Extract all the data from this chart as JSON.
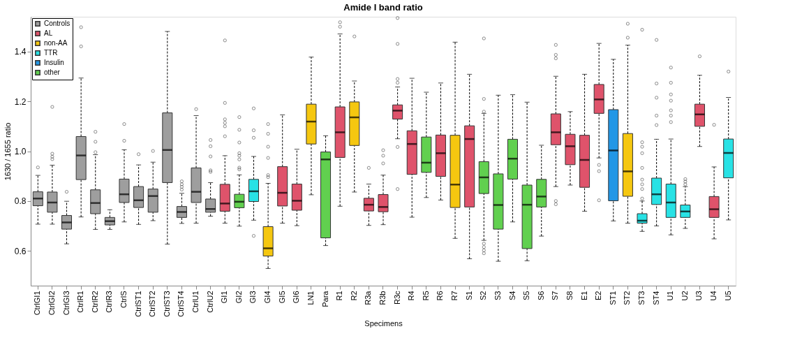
{
  "chart_data": {
    "type": "box",
    "title": "Amide I band ratio",
    "xlabel": "Specimens",
    "ylabel": "1630 / 1655 ratio",
    "categories": [
      "CtrlGI1",
      "CtrlGI2",
      "CtrlGI3",
      "CtrlR1",
      "CtrlR2",
      "CtrlR3",
      "CtrlS",
      "CtrlST1",
      "CtrlST2",
      "CtrlST3",
      "CtrlST4",
      "CtrlU1",
      "CtrlU2",
      "GI1",
      "GI2",
      "GI3",
      "GI4",
      "GI5",
      "GI6",
      "LN1",
      "Para",
      "R1",
      "R2",
      "R3a",
      "R3b",
      "R3c",
      "R4",
      "R5",
      "R6",
      "R7",
      "S1",
      "S2",
      "S3",
      "S4",
      "S5",
      "S6",
      "S7",
      "S8",
      "E1",
      "E2",
      "ST1",
      "ST2",
      "ST3",
      "ST4",
      "U1",
      "U2",
      "U3",
      "U4",
      "U5"
    ],
    "ylim": [
      0.46,
      1.54
    ],
    "yticks": [
      0.6,
      0.8,
      {
        "value": 1.0,
        "label": "1.0"
      },
      1.2,
      1.4
    ],
    "legend": "top left",
    "series": [
      {
        "name": "Controls",
        "color": "#9e9e9e",
        "boxes": [
          {
            "low": 0.707,
            "q1": 0.781,
            "median": 0.81,
            "q3": 0.837,
            "high": 0.903,
            "outliers": [
              0.935
            ]
          },
          {
            "low": 0.707,
            "q1": 0.755,
            "median": 0.794,
            "q3": 0.836,
            "high": 0.944,
            "outliers": [
              1.178,
              0.99,
              0.978,
              0.968
            ]
          },
          {
            "low": 0.628,
            "q1": 0.687,
            "median": 0.714,
            "q3": 0.742,
            "high": 0.799,
            "outliers": [
              0.837
            ]
          },
          {
            "low": 0.736,
            "q1": 0.886,
            "median": 0.983,
            "q3": 1.059,
            "high": 1.294,
            "outliers": [
              1.498,
              1.421
            ]
          },
          {
            "low": 0.686,
            "q1": 0.749,
            "median": 0.792,
            "q3": 0.845,
            "high": 0.986,
            "outliers": [
              1.078,
              1.038,
              0.996
            ]
          },
          {
            "low": 0.686,
            "q1": 0.704,
            "median": 0.719,
            "q3": 0.734,
            "high": 0.765
          },
          {
            "low": 0.716,
            "q1": 0.794,
            "median": 0.827,
            "q3": 0.888,
            "high": 1.006,
            "outliers": [
              1.109,
              1.042
            ]
          },
          {
            "low": 0.706,
            "q1": 0.774,
            "median": 0.803,
            "q3": 0.858,
            "high": 0.945,
            "outliers": [
              0.988
            ]
          },
          {
            "low": 0.721,
            "q1": 0.755,
            "median": 0.82,
            "q3": 0.848,
            "high": 0.956,
            "outliers": [
              1.001
            ]
          },
          {
            "low": 0.627,
            "q1": 0.874,
            "median": 1.005,
            "q3": 1.154,
            "high": 1.481
          },
          {
            "low": 0.71,
            "q1": 0.734,
            "median": 0.756,
            "q3": 0.778,
            "high": 0.831,
            "outliers": [
              0.879,
              0.867,
              0.857,
              0.846
            ]
          },
          {
            "low": 0.711,
            "q1": 0.794,
            "median": 0.837,
            "q3": 0.933,
            "high": 1.143,
            "outliers": [
              1.169
            ]
          },
          {
            "low": 0.739,
            "q1": 0.755,
            "median": 0.768,
            "q3": 0.808,
            "high": 0.874,
            "outliers": [
              1.045,
              1.02,
              0.979,
              0.923,
              0.917
            ]
          },
          null,
          null,
          null,
          null,
          null,
          null,
          null,
          null,
          null,
          null,
          null,
          null,
          null,
          null,
          null,
          null,
          null,
          null,
          null,
          null,
          null,
          null,
          null,
          null,
          null,
          null,
          null,
          null,
          null,
          null,
          null,
          null,
          null,
          null,
          null,
          null
        ]
      },
      {
        "name": "AL",
        "color": "#df536b",
        "boxes": [
          null,
          null,
          null,
          null,
          null,
          null,
          null,
          null,
          null,
          null,
          null,
          null,
          null,
          {
            "low": 0.711,
            "q1": 0.759,
            "median": 0.79,
            "q3": 0.867,
            "high": 0.982,
            "outliers": [
              1.445,
              1.194,
              1.128,
              1.114,
              1.1,
              1.06
            ]
          },
          null,
          null,
          null,
          {
            "low": 0.711,
            "q1": 0.78,
            "median": 0.833,
            "q3": 0.938,
            "high": 1.146
          },
          {
            "low": 0.701,
            "q1": 0.763,
            "median": 0.801,
            "q3": 0.868,
            "high": 1.008
          },
          null,
          null,
          {
            "low": 0.779,
            "q1": 0.975,
            "median": 1.076,
            "q3": 1.178,
            "high": 1.471,
            "outliers": [
              1.518,
              1.5
            ]
          },
          null,
          {
            "low": 0.702,
            "q1": 0.76,
            "median": 0.785,
            "q3": 0.811,
            "high": 0.868,
            "outliers": [
              0.933
            ]
          },
          {
            "low": 0.705,
            "q1": 0.757,
            "median": 0.776,
            "q3": 0.826,
            "high": 0.904,
            "outliers": [
              0.951,
              0.982,
              1.004
            ]
          },
          {
            "low": 1.05,
            "q1": 1.129,
            "median": 1.163,
            "q3": 1.186,
            "high": 1.258,
            "outliers": [
              1.535,
              1.431,
              1.29,
              1.275,
              1.017,
              0.848
            ]
          },
          {
            "low": 0.735,
            "q1": 0.907,
            "median": 1.029,
            "q3": 1.082,
            "high": 1.293
          },
          null,
          {
            "low": 0.804,
            "q1": 0.899,
            "median": 0.992,
            "q3": 1.065,
            "high": 1.274
          },
          null,
          {
            "low": 0.568,
            "q1": 0.776,
            "median": 1.049,
            "q3": 1.102,
            "high": 1.309
          },
          null,
          null,
          null,
          null,
          null,
          {
            "low": 0.858,
            "q1": 1.026,
            "median": 1.076,
            "q3": 1.15,
            "high": 1.301,
            "outliers": [
              1.427,
              1.387,
              1.373,
              0.8,
              0.787
            ]
          },
          {
            "low": 0.864,
            "q1": 0.946,
            "median": 1.02,
            "q3": 1.068,
            "high": 1.159
          },
          {
            "low": 0.759,
            "q1": 0.855,
            "median": 0.965,
            "q3": 1.064,
            "high": 1.309
          },
          {
            "low": 0.973,
            "q1": 1.152,
            "median": 1.208,
            "q3": 1.268,
            "high": 1.433,
            "outliers": [
              0.945,
              0.92,
              0.803
            ]
          },
          null,
          null,
          null,
          null,
          null,
          null,
          {
            "low": 1.019,
            "q1": 1.1,
            "median": 1.148,
            "q3": 1.189,
            "high": 1.305,
            "outliers": [
              1.381
            ]
          },
          {
            "low": 0.648,
            "q1": 0.734,
            "median": 0.767,
            "q3": 0.818,
            "high": 0.937,
            "outliers": [
              1.106
            ]
          },
          null
        ]
      },
      {
        "name": "non-AA",
        "color": "#f5c710",
        "boxes": [
          null,
          null,
          null,
          null,
          null,
          null,
          null,
          null,
          null,
          null,
          null,
          null,
          null,
          null,
          null,
          null,
          {
            "low": 0.529,
            "q1": 0.579,
            "median": 0.61,
            "q3": 0.697,
            "high": 0.871,
            "outliers": [
              1.109,
              1.07,
              1.018,
              0.973,
              0.904,
              0.896
            ]
          },
          null,
          null,
          {
            "low": 0.825,
            "q1": 1.029,
            "median": 1.119,
            "q3": 1.189,
            "high": 1.378
          },
          null,
          null,
          {
            "low": 0.836,
            "q1": 1.023,
            "median": 1.136,
            "q3": 1.198,
            "high": 1.282,
            "outliers": [
              1.461
            ]
          },
          null,
          null,
          null,
          null,
          null,
          null,
          {
            "low": 0.65,
            "q1": 0.774,
            "median": 0.866,
            "q3": 1.064,
            "high": 1.438
          },
          null,
          null,
          null,
          null,
          null,
          null,
          null,
          null,
          null,
          null,
          null,
          {
            "low": 0.711,
            "q1": 0.819,
            "median": 0.919,
            "q3": 1.071,
            "high": 1.426,
            "outliers": [
              1.512,
              1.456
            ]
          },
          null,
          null,
          null,
          null,
          null,
          null,
          null
        ]
      },
      {
        "name": "TTR",
        "color": "#28e2e5",
        "boxes": [
          null,
          null,
          null,
          null,
          null,
          null,
          null,
          null,
          null,
          null,
          null,
          null,
          null,
          null,
          null,
          {
            "low": 0.723,
            "q1": 0.798,
            "median": 0.839,
            "q3": 0.887,
            "high": 0.979,
            "outliers": [
              1.172,
              1.084,
              1.054,
              0.66
            ]
          },
          null,
          null,
          null,
          null,
          null,
          null,
          null,
          null,
          null,
          null,
          null,
          null,
          null,
          null,
          null,
          null,
          null,
          null,
          null,
          null,
          null,
          null,
          null,
          null,
          null,
          null,
          {
            "low": 0.678,
            "q1": 0.711,
            "median": 0.721,
            "q3": 0.749,
            "high": 0.8,
            "outliers": [
              1.488,
              1.036,
              1.018,
              0.992,
              0.933,
              0.886,
              0.867,
              0.848,
              0.81
            ]
          },
          {
            "low": 0.7,
            "q1": 0.786,
            "median": 0.827,
            "q3": 0.892,
            "high": 1.048,
            "outliers": [
              1.447,
              1.272,
              1.215,
              1.143,
              1.105
            ]
          },
          {
            "low": 0.664,
            "q1": 0.734,
            "median": 0.794,
            "q3": 0.868,
            "high": 1.049,
            "outliers": [
              1.336,
              1.275,
              1.228,
              1.203,
              1.164,
              1.143,
              1.117
            ]
          },
          {
            "low": 0.69,
            "q1": 0.734,
            "median": 0.758,
            "q3": 0.784,
            "high": 0.858,
            "outliers": [
              0.888,
              0.878,
              0.867
            ]
          },
          null,
          null,
          {
            "low": 0.724,
            "q1": 0.893,
            "median": 0.993,
            "q3": 1.049,
            "high": 1.216,
            "outliers": [
              1.32
            ]
          }
        ]
      },
      {
        "name": "Insulin",
        "color": "#2297e6",
        "boxes": [
          null,
          null,
          null,
          null,
          null,
          null,
          null,
          null,
          null,
          null,
          null,
          null,
          null,
          null,
          null,
          null,
          null,
          null,
          null,
          null,
          null,
          null,
          null,
          null,
          null,
          null,
          null,
          null,
          null,
          null,
          null,
          null,
          null,
          null,
          null,
          null,
          null,
          null,
          null,
          null,
          {
            "low": 0.72,
            "q1": 0.801,
            "median": 1.003,
            "q3": 1.167,
            "high": 1.369
          },
          null,
          null,
          null,
          null,
          null,
          null,
          null,
          null
        ]
      },
      {
        "name": "other",
        "color": "#61d04f",
        "boxes": [
          null,
          null,
          null,
          null,
          null,
          null,
          null,
          null,
          null,
          null,
          null,
          null,
          null,
          null,
          {
            "low": 0.699,
            "q1": 0.773,
            "median": 0.797,
            "q3": 0.827,
            "high": 0.905,
            "outliers": [
              1.137,
              1.086,
              1.035,
              0.992,
              0.982,
              0.967,
              0.934,
              0.927
            ]
          },
          null,
          null,
          null,
          null,
          null,
          {
            "low": 0.621,
            "q1": 0.652,
            "median": 0.967,
            "q3": 0.997,
            "high": 1.062
          },
          null,
          null,
          null,
          null,
          null,
          null,
          {
            "low": 0.814,
            "q1": 0.915,
            "median": 0.954,
            "q3": 1.057,
            "high": 1.237
          },
          null,
          null,
          null,
          {
            "low": 0.642,
            "q1": 0.83,
            "median": 0.895,
            "q3": 0.958,
            "high": 1.152,
            "outliers": [
              1.453,
              1.21,
              1.159,
              0.629,
              0.615,
              0.602,
              0.59
            ]
          },
          {
            "low": 0.558,
            "q1": 0.687,
            "median": 0.784,
            "q3": 0.909,
            "high": 1.225
          },
          {
            "low": 0.716,
            "q1": 0.888,
            "median": 0.97,
            "q3": 1.048,
            "high": 1.227
          },
          {
            "low": 0.56,
            "q1": 0.609,
            "median": 0.785,
            "q3": 0.864,
            "high": 1.197
          },
          {
            "low": 0.659,
            "q1": 0.776,
            "median": 0.818,
            "q3": 0.887,
            "high": 1.024
          },
          null,
          null,
          null,
          null,
          null,
          null,
          null,
          null,
          null,
          null,
          null,
          null,
          null
        ]
      }
    ]
  }
}
